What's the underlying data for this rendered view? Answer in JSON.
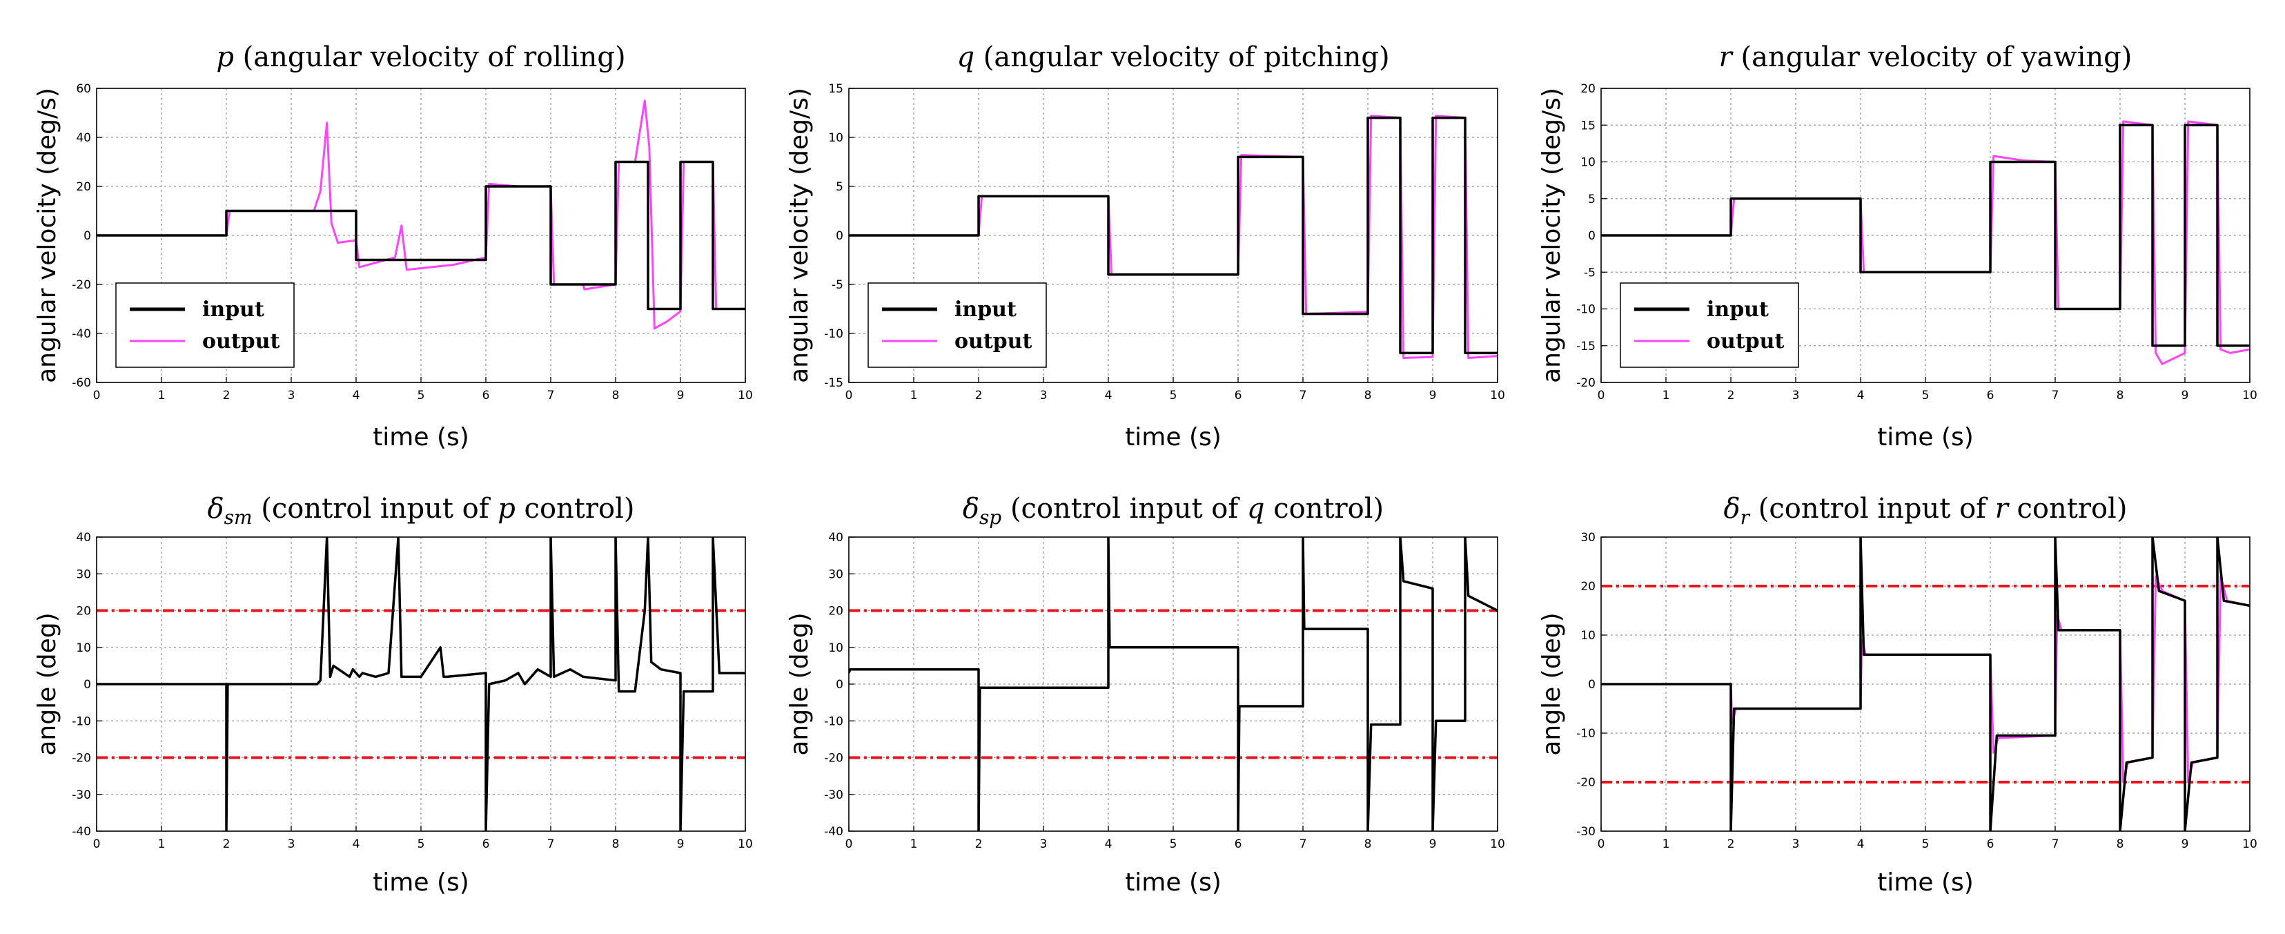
{
  "colors": {
    "input": "#000000",
    "output": "#ff44ff",
    "limit": "#e8141c",
    "grid": "#9a9a9a"
  },
  "chart_data": [
    {
      "type": "line",
      "title_var": "p",
      "title_text": " (angular velocity of rolling)",
      "xlabel": "time (s)",
      "ylabel": "angular velocity (deg/s)",
      "xlim": [
        0,
        10
      ],
      "ylim": [
        -60,
        60
      ],
      "xticks": [
        "0",
        "1",
        "2",
        "3",
        "4",
        "5",
        "6",
        "7",
        "8",
        "9",
        "10"
      ],
      "yticks": [
        "-60",
        "-40",
        "-20",
        "0",
        "20",
        "40",
        "60"
      ],
      "legend": [
        "input",
        "output"
      ],
      "series": [
        {
          "name": "input",
          "x": [
            0,
            2,
            2,
            4,
            4,
            6,
            6,
            7,
            7,
            8,
            8,
            8.5,
            8.5,
            9,
            9,
            9.5,
            9.5,
            10
          ],
          "y": [
            0,
            0,
            10,
            10,
            -10,
            -10,
            20,
            20,
            -20,
            -20,
            30,
            30,
            -30,
            -30,
            30,
            30,
            -30,
            -30
          ]
        },
        {
          "name": "output",
          "x": [
            0,
            2,
            2.05,
            3.35,
            3.45,
            3.55,
            3.62,
            3.72,
            4,
            4.05,
            4.6,
            4.7,
            4.78,
            5.5,
            6,
            6.05,
            6.5,
            7,
            7.05,
            7.5,
            7.52,
            8,
            8.05,
            8.3,
            8.45,
            8.52,
            8.6,
            8.8,
            9,
            9.05,
            9.5,
            9.55,
            9.8,
            10
          ],
          "y": [
            0,
            0,
            10,
            10,
            18,
            46,
            5,
            -3,
            -2,
            -13,
            -9,
            4,
            -14,
            -12,
            -9,
            21,
            20,
            20,
            -20,
            -20,
            -22,
            -20,
            30,
            30,
            55,
            36,
            -38,
            -35,
            -31,
            30,
            30,
            -30,
            -30,
            -30
          ]
        }
      ],
      "limits": []
    },
    {
      "type": "line",
      "title_var": "q",
      "title_text": " (angular velocity of pitching)",
      "xlabel": "time (s)",
      "ylabel": "angular velocity (deg/s)",
      "xlim": [
        0,
        10
      ],
      "ylim": [
        -15,
        15
      ],
      "xticks": [
        "0",
        "1",
        "2",
        "3",
        "4",
        "5",
        "6",
        "7",
        "8",
        "9",
        "10"
      ],
      "yticks": [
        "-15",
        "-10",
        "-5",
        "0",
        "5",
        "10",
        "15"
      ],
      "legend": [
        "input",
        "output"
      ],
      "series": [
        {
          "name": "input",
          "x": [
            0,
            2,
            2,
            4,
            4,
            6,
            6,
            7,
            7,
            8,
            8,
            8.5,
            8.5,
            9,
            9,
            9.5,
            9.5,
            10
          ],
          "y": [
            0,
            0,
            4,
            4,
            -4,
            -4,
            8,
            8,
            -8,
            -8,
            12,
            12,
            -12,
            -12,
            12,
            12,
            -12,
            -12
          ]
        },
        {
          "name": "output",
          "x": [
            0,
            2,
            2.05,
            4,
            4.05,
            6,
            6.05,
            7,
            7.05,
            8,
            8.05,
            8.5,
            8.55,
            9,
            9.05,
            9.5,
            9.55,
            10
          ],
          "y": [
            0,
            0,
            4,
            4,
            -4,
            -4,
            8.2,
            8,
            -8,
            -7.8,
            12.2,
            12,
            -12.5,
            -12.4,
            12.2,
            12,
            -12.5,
            -12.3
          ]
        }
      ],
      "limits": []
    },
    {
      "type": "line",
      "title_var": "r",
      "title_text": " (angular velocity of yawing)",
      "xlabel": "time (s)",
      "ylabel": "angular velocity (deg/s)",
      "xlim": [
        0,
        10
      ],
      "ylim": [
        -20,
        20
      ],
      "xticks": [
        "0",
        "1",
        "2",
        "3",
        "4",
        "5",
        "6",
        "7",
        "8",
        "9",
        "10"
      ],
      "yticks": [
        "-20",
        "-15",
        "-10",
        "-5",
        "0",
        "5",
        "10",
        "15",
        "20"
      ],
      "legend": [
        "input",
        "output"
      ],
      "series": [
        {
          "name": "input",
          "x": [
            0,
            2,
            2,
            4,
            4,
            6,
            6,
            7,
            7,
            8,
            8,
            8.5,
            8.5,
            9,
            9,
            9.5,
            9.5,
            10
          ],
          "y": [
            0,
            0,
            5,
            5,
            -5,
            -5,
            10,
            10,
            -10,
            -10,
            15,
            15,
            -15,
            -15,
            15,
            15,
            -15,
            -15
          ]
        },
        {
          "name": "output",
          "x": [
            0,
            2,
            2.05,
            4,
            4.05,
            6,
            6.05,
            6.5,
            7,
            7.05,
            8,
            8.05,
            8.5,
            8.55,
            8.65,
            9,
            9.05,
            9.5,
            9.55,
            9.7,
            10
          ],
          "y": [
            0,
            0,
            5,
            5,
            -5,
            -5,
            10.8,
            10.2,
            10,
            -10,
            -10,
            15.5,
            15,
            -16,
            -17.5,
            -16,
            15.5,
            15,
            -15.5,
            -16,
            -15.5
          ]
        }
      ],
      "limits": []
    },
    {
      "type": "line",
      "title_var": "δ",
      "title_sub": "sm",
      "title_text": " (control input of ",
      "title_var2": "p",
      "title_text2": " control)",
      "xlabel": "time (s)",
      "ylabel": "angle (deg)",
      "xlim": [
        0,
        10
      ],
      "ylim": [
        -40,
        40
      ],
      "xticks": [
        "0",
        "1",
        "2",
        "3",
        "4",
        "5",
        "6",
        "7",
        "8",
        "9",
        "10"
      ],
      "yticks": [
        "-40",
        "-30",
        "-20",
        "-10",
        "0",
        "10",
        "20",
        "30",
        "40"
      ],
      "legend": [],
      "series": [
        {
          "name": "input",
          "x": [
            0,
            2,
            2,
            2.02,
            3.4,
            3.45,
            3.55,
            3.6,
            3.65,
            3.9,
            3.95,
            4.05,
            4.1,
            4.3,
            4.5,
            4.65,
            4.7,
            4.75,
            5,
            5.3,
            5.35,
            5.4,
            6,
            6,
            6.05,
            6.3,
            6.5,
            6.6,
            6.8,
            7,
            7,
            7.05,
            7.3,
            7.4,
            7.5,
            8,
            8,
            8.05,
            8.3,
            8.45,
            8.5,
            8.55,
            8.7,
            9,
            9,
            9.05,
            9.5,
            9.5,
            9.6,
            10
          ],
          "y": [
            0,
            0,
            -40,
            0,
            0,
            1,
            40,
            2,
            5,
            2,
            4,
            2,
            3,
            2,
            3,
            40,
            2,
            2,
            2,
            10,
            2,
            2,
            3,
            -40,
            0,
            1,
            3,
            0,
            4,
            2,
            40,
            2,
            4,
            3,
            2,
            1,
            40,
            -2,
            -2,
            20,
            40,
            6,
            4,
            3,
            -40,
            -2,
            -2,
            40,
            3,
            3
          ]
        }
      ],
      "limits": [
        20,
        -20
      ]
    },
    {
      "type": "line",
      "title_var": "δ",
      "title_sub": "sp",
      "title_text": " (control input of ",
      "title_var2": "q",
      "title_text2": " control)",
      "xlabel": "time (s)",
      "ylabel": "angle (deg)",
      "xlim": [
        0,
        10
      ],
      "ylim": [
        -40,
        40
      ],
      "xticks": [
        "0",
        "1",
        "2",
        "3",
        "4",
        "5",
        "6",
        "7",
        "8",
        "9",
        "10"
      ],
      "yticks": [
        "-40",
        "-30",
        "-20",
        "-10",
        "0",
        "10",
        "20",
        "30",
        "40"
      ],
      "legend": [],
      "series": [
        {
          "name": "input",
          "x": [
            0,
            0.02,
            2,
            2,
            2.02,
            4,
            4,
            4.02,
            6,
            6,
            6.02,
            7,
            7,
            7.02,
            8,
            8,
            8.05,
            8.5,
            8.5,
            8.55,
            9,
            9,
            9.05,
            9.5,
            9.5,
            9.55,
            10
          ],
          "y": [
            3,
            4,
            4,
            -40,
            -1,
            -1,
            40,
            10,
            10,
            -40,
            -6,
            -6,
            40,
            15,
            15,
            -40,
            -11,
            -11,
            40,
            28,
            26,
            -40,
            -10,
            -10,
            40,
            24,
            20
          ]
        }
      ],
      "limits": [
        20,
        -20
      ]
    },
    {
      "type": "line",
      "title_var": "δ",
      "title_sub": "r",
      "title_text": " (control input of ",
      "title_var2": "r",
      "title_text2": " control)",
      "xlabel": "time (s)",
      "ylabel": "angle (deg)",
      "xlim": [
        0,
        10
      ],
      "ylim": [
        -30,
        30
      ],
      "xticks": [
        "0",
        "1",
        "2",
        "3",
        "4",
        "5",
        "6",
        "7",
        "8",
        "9",
        "10"
      ],
      "yticks": [
        "-30",
        "-20",
        "-10",
        "0",
        "10",
        "20",
        "30"
      ],
      "legend": [],
      "series": [
        {
          "name": "input",
          "x": [
            0,
            2,
            2,
            2.05,
            4,
            4,
            4.05,
            6,
            6,
            6.1,
            7,
            7,
            7.05,
            8,
            8,
            8.1,
            8.5,
            8.5,
            8.6,
            9,
            9,
            9.1,
            9.5,
            9.5,
            9.6,
            10
          ],
          "y": [
            0,
            0,
            -30,
            -5,
            -5,
            30,
            6,
            6,
            -30,
            -10.5,
            -10.5,
            30,
            11,
            11,
            -30,
            -16,
            -15,
            30,
            19,
            17,
            -30,
            -16,
            -15,
            30,
            17,
            16
          ]
        },
        {
          "name": "output",
          "x": [
            0,
            2,
            2.02,
            2.08,
            4,
            4.02,
            4.08,
            6,
            6.05,
            6.12,
            7,
            7.03,
            7.1,
            8,
            8.05,
            8.12,
            8.5,
            8.55,
            8.65,
            9,
            9.05,
            9.12,
            9.5,
            9.55,
            9.65,
            10
          ],
          "y": [
            0,
            0,
            -8,
            -5,
            -5,
            9,
            6,
            6,
            -14,
            -11,
            -10.5,
            14,
            11,
            11,
            -20,
            -16,
            -15,
            22,
            19,
            17,
            -20,
            -16,
            -15,
            22,
            17,
            16
          ]
        }
      ],
      "limits": [
        20,
        -20
      ]
    }
  ]
}
